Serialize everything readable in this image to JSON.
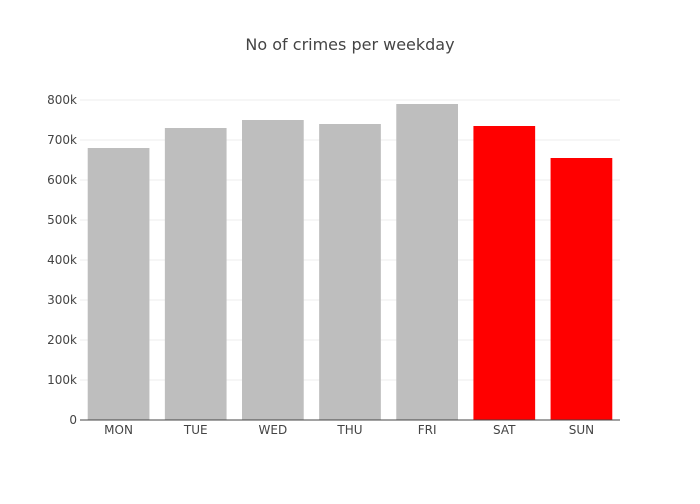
{
  "chart_data": {
    "type": "bar",
    "title": "No of crimes per weekday",
    "xlabel": "",
    "ylabel": "",
    "categories": [
      "MON",
      "TUE",
      "WED",
      "THU",
      "FRI",
      "SAT",
      "SUN"
    ],
    "values": [
      680000,
      730000,
      750000,
      740000,
      790000,
      735000,
      655000
    ],
    "ylim": [
      0,
      800000
    ],
    "yticks": [
      0,
      100000,
      200000,
      300000,
      400000,
      500000,
      600000,
      700000,
      800000
    ],
    "ytick_labels": [
      "0",
      "100k",
      "200k",
      "300k",
      "400k",
      "500k",
      "600k",
      "700k",
      "800k"
    ],
    "bar_colors": [
      "#bebebe",
      "#bebebe",
      "#bebebe",
      "#bebebe",
      "#bebebe",
      "#ff0000",
      "#ff0000"
    ],
    "grid": true,
    "legend": "none"
  }
}
